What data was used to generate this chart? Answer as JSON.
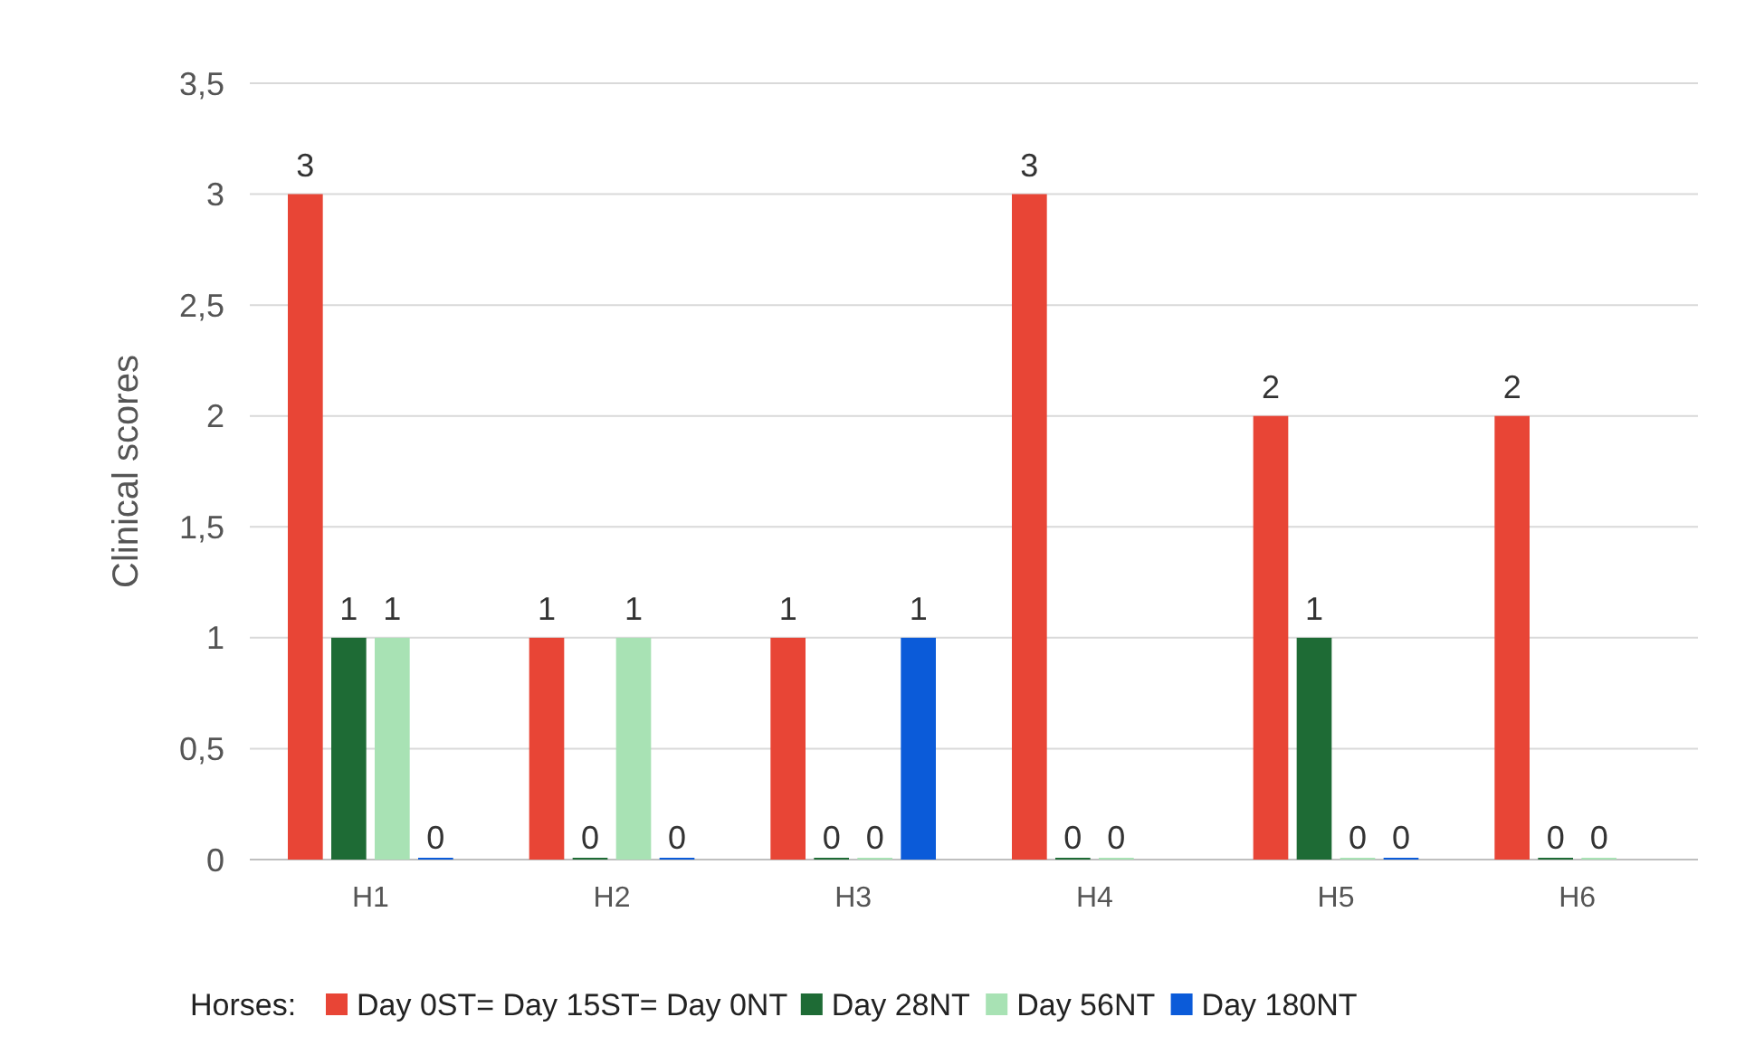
{
  "chart_data": {
    "type": "bar",
    "ylabel": "Clinical scores",
    "legend_title": "Horses:",
    "categories": [
      "H1",
      "H2",
      "H3",
      "H4",
      "H5",
      "H6"
    ],
    "series": [
      {
        "name": "Day 0ST= Day 15ST= Day 0NT",
        "color": "#e84536",
        "values": [
          3,
          1,
          1,
          3,
          2,
          2
        ]
      },
      {
        "name": "Day 28NT",
        "color": "#1e6b35",
        "values": [
          1,
          0,
          0,
          0,
          1,
          0
        ]
      },
      {
        "name": "Day 56NT",
        "color": "#a8e2b4",
        "values": [
          1,
          1,
          0,
          0,
          0,
          0
        ]
      },
      {
        "name": "Day 180NT",
        "color": "#0b5bd9",
        "values": [
          0,
          0,
          1,
          null,
          0,
          null
        ]
      }
    ],
    "ylim": [
      0,
      3.5
    ],
    "yticks": [
      0,
      {
        "value": 0.5,
        "label": "0,5"
      },
      1,
      {
        "value": 1.5,
        "label": "1,5"
      },
      2,
      {
        "value": 2.5,
        "label": "2,5"
      },
      3,
      {
        "value": 3.5,
        "label": "3,5"
      }
    ],
    "grid": "y",
    "legend": "bottom",
    "data_labels": true
  }
}
